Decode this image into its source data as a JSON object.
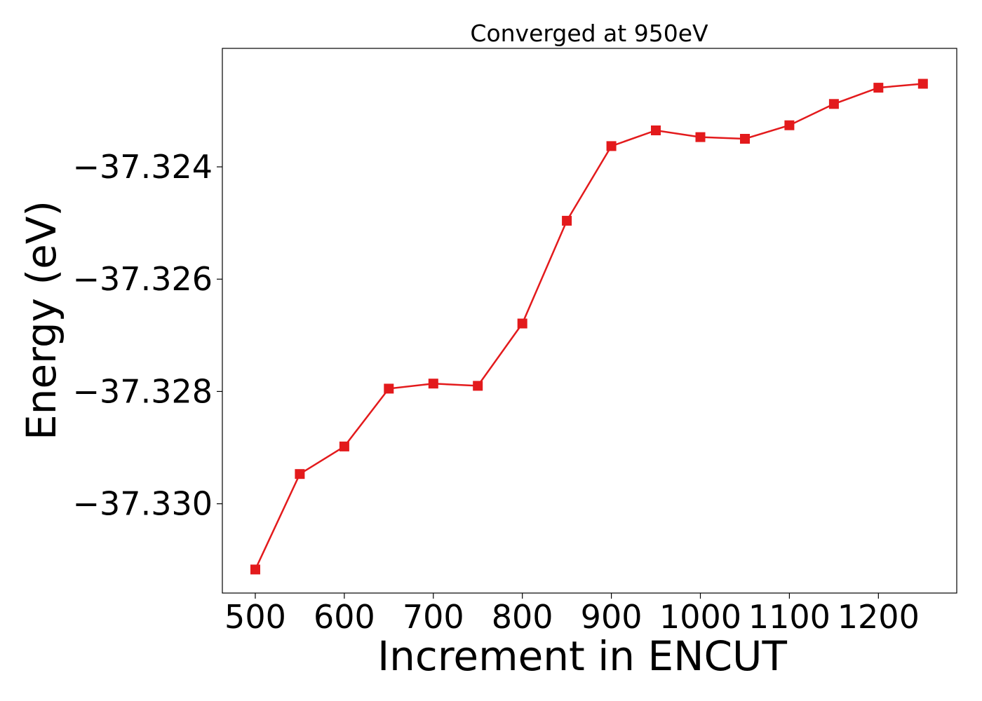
{
  "chart_data": {
    "type": "line",
    "title": "Converged at 950eV",
    "xlabel": "Increment in ENCUT",
    "ylabel": "Energy (eV)",
    "xlim": [
      463,
      1288
    ],
    "ylim": [
      -37.33159,
      -37.32189
    ],
    "x_ticks": [
      500,
      600,
      700,
      800,
      900,
      1000,
      1100,
      1200
    ],
    "x_tick_labels": [
      "500",
      "600",
      "700",
      "800",
      "900",
      "1000",
      "1100",
      "1200"
    ],
    "y_ticks": [
      -37.324,
      -37.326,
      -37.328,
      -37.33
    ],
    "y_tick_labels": [
      "−37.324",
      "−37.326",
      "−37.328",
      "−37.330"
    ],
    "grid": false,
    "series": [
      {
        "color": "#e31a1c",
        "marker": "square",
        "x": [
          500,
          550,
          600,
          650,
          700,
          750,
          800,
          850,
          900,
          950,
          1000,
          1050,
          1100,
          1150,
          1200,
          1250
        ],
        "y": [
          -37.33117,
          -37.32947,
          -37.32898,
          -37.32795,
          -37.32786,
          -37.3279,
          -37.32679,
          -37.32496,
          -37.32363,
          -37.32335,
          -37.32347,
          -37.3235,
          -37.32326,
          -37.32288,
          -37.32259,
          -37.32252
        ]
      }
    ]
  }
}
